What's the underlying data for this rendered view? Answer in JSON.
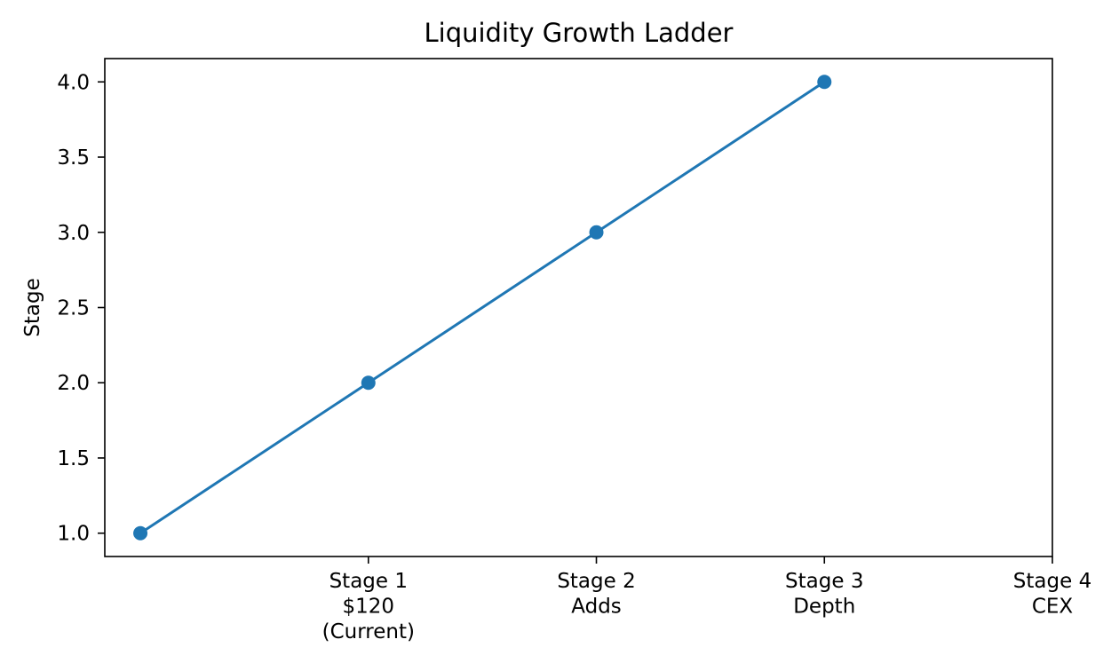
{
  "figure": {
    "background": "#ffffff"
  },
  "chart_data": {
    "type": "line",
    "title": "Liquidity Growth Ladder",
    "xlabel": "",
    "ylabel": "Stage",
    "x": [
      0,
      1,
      2,
      3
    ],
    "y": [
      1,
      2,
      3,
      4
    ],
    "series_color": "#1f77b4",
    "marker": "circle",
    "marker_radius": 8,
    "line_width": 3,
    "xlim": [
      -0.156,
      4.0
    ],
    "ylim": [
      0.845,
      4.155
    ],
    "grid": false,
    "text_color": "#000000",
    "axis_color": "#000000",
    "xticks": [
      {
        "pos": 1,
        "lines": [
          "Stage 1",
          "$120",
          "(Current)"
        ]
      },
      {
        "pos": 2,
        "lines": [
          "Stage 2",
          "Adds"
        ]
      },
      {
        "pos": 3,
        "lines": [
          "Stage 3",
          "Depth"
        ]
      },
      {
        "pos": 4,
        "lines": [
          "Stage 4",
          "CEX"
        ]
      }
    ],
    "yticks": [
      {
        "pos": 1.0,
        "label": "1.0"
      },
      {
        "pos": 1.5,
        "label": "1.5"
      },
      {
        "pos": 2.0,
        "label": "2.0"
      },
      {
        "pos": 2.5,
        "label": "2.5"
      },
      {
        "pos": 3.0,
        "label": "3.0"
      },
      {
        "pos": 3.5,
        "label": "3.5"
      },
      {
        "pos": 4.0,
        "label": "4.0"
      }
    ]
  }
}
